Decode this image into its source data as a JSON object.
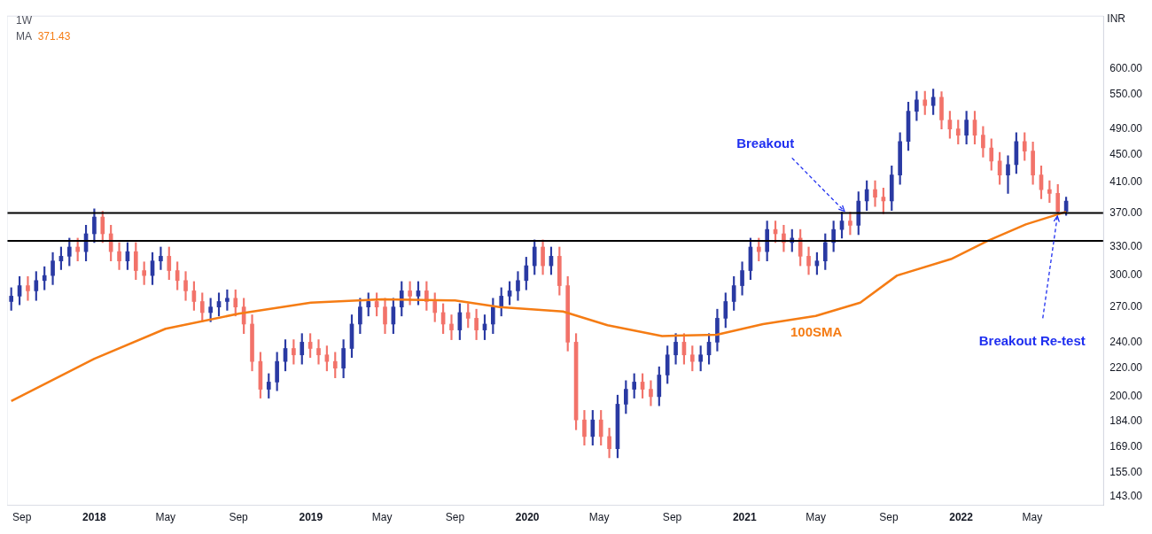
{
  "chart_data": {
    "type": "candlestick",
    "title": "1W",
    "ylabel": "INR",
    "log": "y",
    "legend": "top left",
    "marker": "none",
    "xlim": [
      "2017-08-07",
      "2022-08-29"
    ],
    "xticks": [
      {
        "value": "2017-09-01",
        "label": "Sep"
      },
      {
        "value": "2018-01-01",
        "label": "2018"
      },
      {
        "value": "2018-05-01",
        "label": "May"
      },
      {
        "value": "2018-09-01",
        "label": "Sep"
      },
      {
        "value": "2019-01-01",
        "label": "2019"
      },
      {
        "value": "2019-05-01",
        "label": "May"
      },
      {
        "value": "2019-09-01",
        "label": "Sep"
      },
      {
        "value": "2020-01-01",
        "label": "2020"
      },
      {
        "value": "2020-05-01",
        "label": "May"
      },
      {
        "value": "2020-09-01",
        "label": "Sep"
      },
      {
        "value": "2021-01-01",
        "label": "2021"
      },
      {
        "value": "2021-05-01",
        "label": "May"
      },
      {
        "value": "2021-09-01",
        "label": "Sep"
      },
      {
        "value": "2022-01-01",
        "label": "2022"
      },
      {
        "value": "2022-05-01",
        "label": "May"
      }
    ],
    "ylim": [
      139,
      715
    ],
    "yticks": [
      {
        "value": 143,
        "label": "143.00"
      },
      {
        "value": 155,
        "label": "155.00"
      },
      {
        "value": 169,
        "label": "169.00"
      },
      {
        "value": 184,
        "label": "184.00"
      },
      {
        "value": 200,
        "label": "200.00"
      },
      {
        "value": 220,
        "label": "220.00"
      },
      {
        "value": 240,
        "label": "240.00"
      },
      {
        "value": 270,
        "label": "270.00"
      },
      {
        "value": 300,
        "label": "300.00"
      },
      {
        "value": 330,
        "label": "330.00"
      },
      {
        "value": 370,
        "label": "370.00"
      },
      {
        "value": 410,
        "label": "410.00"
      },
      {
        "value": 450,
        "label": "450.00"
      },
      {
        "value": 490,
        "label": "490.00"
      },
      {
        "value": 550,
        "label": "550.00"
      },
      {
        "value": 600,
        "label": "600.00"
      }
    ],
    "colors": [
      "#2a3aa3",
      "#2a3aa3",
      "#f2736a",
      "#2a3aa3",
      "#2a3aa3",
      "#2a3aa3",
      "#2a3aa3",
      "#2a3aa3",
      "#f2736a",
      "#2a3aa3",
      "#2a3aa3",
      "#f2736a",
      "#f2736a",
      "#f2736a",
      "#2a3aa3",
      "#f2736a",
      "#f2736a",
      "#2a3aa3",
      "#2a3aa3",
      "#f2736a",
      "#f2736a",
      "#f2736a",
      "#f2736a",
      "#f2736a",
      "#2a3aa3",
      "#2a3aa3",
      "#2a3aa3",
      "#f2736a",
      "#f2736a",
      "#f2736a",
      "#f2736a",
      "#2a3aa3",
      "#2a3aa3",
      "#2a3aa3",
      "#f2736a",
      "#2a3aa3",
      "#f2736a",
      "#f2736a",
      "#f2736a",
      "#f2736a",
      "#2a3aa3",
      "#2a3aa3",
      "#2a3aa3",
      "#2a3aa3",
      "#f2736a",
      "#f2736a",
      "#2a3aa3",
      "#2a3aa3",
      "#f2736a",
      "#2a3aa3",
      "#f2736a",
      "#f2736a",
      "#f2736a",
      "#f2736a",
      "#2a3aa3",
      "#f2736a",
      "#f2736a",
      "#2a3aa3",
      "#2a3aa3",
      "#2a3aa3",
      "#2a3aa3",
      "#2a3aa3",
      "#2a3aa3",
      "#2a3aa3",
      "#f2736a",
      "#2a3aa3",
      "#f2736a",
      "#f2736a",
      "#f2736a",
      "#f2736a",
      "#2a3aa3",
      "#f2736a",
      "#f2736a",
      "#2a3aa3",
      "#2a3aa3",
      "#2a3aa3",
      "#f2736a",
      "#f2736a",
      "#2a3aa3",
      "#2a3aa3",
      "#2a3aa3",
      "#f2736a",
      "#f2736a",
      "#2a3aa3",
      "#2a3aa3",
      "#2a3aa3",
      "#2a3aa3",
      "#2a3aa3",
      "#2a3aa3",
      "#2a3aa3",
      "#f2736a",
      "#2a3aa3",
      "#f2736a",
      "#f2736a",
      "#2a3aa3",
      "#f2736a",
      "#f2736a",
      "#2a3aa3",
      "#2a3aa3",
      "#2a3aa3",
      "#2a3aa3",
      "#f2736a",
      "#2a3aa3",
      "#2a3aa3",
      "#f2736a",
      "#f2736a",
      "#2a3aa3",
      "#2a3aa3",
      "#2a3aa3",
      "#2a3aa3",
      "#f2736a",
      "#2a3aa3",
      "#f2736a",
      "#f2736a",
      "#f2736a",
      "#2a3aa3",
      "#f2736a",
      "#f2736a",
      "#f2736a",
      "#f2736a",
      "#2a3aa3",
      "#2a3aa3",
      "#f2736a",
      "#f2736a",
      "#f2736a",
      "#f2736a",
      "#f2736a",
      "#2a3aa3"
    ],
    "x": [
      "2017-08-14",
      "2017-08-28",
      "2017-09-11",
      "2017-09-25",
      "2017-10-09",
      "2017-10-23",
      "2017-11-06",
      "2017-11-20",
      "2017-12-04",
      "2017-12-18",
      "2018-01-01",
      "2018-01-15",
      "2018-01-29",
      "2018-02-12",
      "2018-02-26",
      "2018-03-12",
      "2018-03-26",
      "2018-04-09",
      "2018-04-23",
      "2018-05-07",
      "2018-05-21",
      "2018-06-04",
      "2018-06-18",
      "2018-07-02",
      "2018-07-16",
      "2018-07-30",
      "2018-08-13",
      "2018-08-27",
      "2018-09-10",
      "2018-09-24",
      "2018-10-08",
      "2018-10-22",
      "2018-11-05",
      "2018-11-19",
      "2018-12-03",
      "2018-12-17",
      "2018-12-31",
      "2019-01-14",
      "2019-01-28",
      "2019-02-11",
      "2019-02-25",
      "2019-03-11",
      "2019-03-25",
      "2019-04-08",
      "2019-04-22",
      "2019-05-06",
      "2019-05-20",
      "2019-06-03",
      "2019-06-17",
      "2019-07-01",
      "2019-07-15",
      "2019-07-29",
      "2019-08-12",
      "2019-08-26",
      "2019-09-09",
      "2019-09-23",
      "2019-10-07",
      "2019-10-21",
      "2019-11-04",
      "2019-11-18",
      "2019-12-02",
      "2019-12-16",
      "2019-12-30",
      "2020-01-13",
      "2020-01-27",
      "2020-02-10",
      "2020-02-24",
      "2020-03-09",
      "2020-03-23",
      "2020-04-06",
      "2020-04-20",
      "2020-05-04",
      "2020-05-18",
      "2020-06-01",
      "2020-06-15",
      "2020-06-29",
      "2020-07-13",
      "2020-07-27",
      "2020-08-10",
      "2020-08-24",
      "2020-09-07",
      "2020-09-21",
      "2020-10-05",
      "2020-10-19",
      "2020-11-02",
      "2020-11-16",
      "2020-11-30",
      "2020-12-14",
      "2020-12-28",
      "2021-01-11",
      "2021-01-25",
      "2021-02-08",
      "2021-02-22",
      "2021-03-08",
      "2021-03-22",
      "2021-04-05",
      "2021-04-19",
      "2021-05-03",
      "2021-05-17",
      "2021-05-31",
      "2021-06-14",
      "2021-06-28",
      "2021-07-12",
      "2021-07-26",
      "2021-08-09",
      "2021-08-23",
      "2021-09-06",
      "2021-09-20",
      "2021-10-04",
      "2021-10-18",
      "2021-11-01",
      "2021-11-15",
      "2021-11-29",
      "2021-12-13",
      "2021-12-27",
      "2022-01-10",
      "2022-01-24",
      "2022-02-07",
      "2022-02-21",
      "2022-03-07",
      "2022-03-21",
      "2022-04-04",
      "2022-04-18",
      "2022-05-02",
      "2022-05-16",
      "2022-05-30",
      "2022-06-13",
      "2022-06-27"
    ],
    "ohlc": [
      [
        275,
        288,
        267,
        280
      ],
      [
        280,
        299,
        272,
        290
      ],
      [
        290,
        299,
        276,
        285
      ],
      [
        285,
        304,
        276,
        295
      ],
      [
        295,
        309,
        286,
        300
      ],
      [
        300,
        324,
        291,
        315
      ],
      [
        315,
        330,
        306,
        320
      ],
      [
        320,
        340,
        310,
        330
      ],
      [
        330,
        340,
        315,
        325
      ],
      [
        325,
        355,
        315,
        345
      ],
      [
        345,
        375,
        335,
        365
      ],
      [
        365,
        372,
        335,
        345
      ],
      [
        345,
        355,
        315,
        325
      ],
      [
        325,
        335,
        306,
        315
      ],
      [
        315,
        335,
        306,
        325
      ],
      [
        325,
        335,
        296,
        305
      ],
      [
        305,
        314,
        291,
        300
      ],
      [
        300,
        324,
        291,
        315
      ],
      [
        315,
        330,
        306,
        320
      ],
      [
        320,
        330,
        296,
        305
      ],
      [
        305,
        314,
        286,
        295
      ],
      [
        295,
        304,
        276,
        285
      ],
      [
        285,
        294,
        267,
        275
      ],
      [
        275,
        283,
        257,
        265
      ],
      [
        265,
        278,
        257,
        270
      ],
      [
        270,
        283,
        262,
        275
      ],
      [
        275,
        286,
        267,
        278
      ],
      [
        278,
        286,
        262,
        270
      ],
      [
        270,
        278,
        247,
        255
      ],
      [
        255,
        263,
        218,
        225
      ],
      [
        225,
        232,
        199,
        205
      ],
      [
        205,
        216,
        199,
        210
      ],
      [
        210,
        232,
        204,
        225
      ],
      [
        225,
        242,
        218,
        235
      ],
      [
        235,
        242,
        223,
        230
      ],
      [
        230,
        247,
        223,
        240
      ],
      [
        240,
        247,
        228,
        235
      ],
      [
        235,
        242,
        223,
        230
      ],
      [
        230,
        237,
        218,
        225
      ],
      [
        225,
        232,
        213,
        220
      ],
      [
        220,
        242,
        213,
        235
      ],
      [
        235,
        263,
        228,
        255
      ],
      [
        255,
        278,
        247,
        270
      ],
      [
        270,
        283,
        262,
        275
      ],
      [
        275,
        283,
        262,
        270
      ],
      [
        270,
        278,
        247,
        255
      ],
      [
        255,
        278,
        247,
        270
      ],
      [
        270,
        294,
        262,
        285
      ],
      [
        285,
        294,
        272,
        280
      ],
      [
        280,
        294,
        272,
        285
      ],
      [
        285,
        294,
        267,
        275
      ],
      [
        275,
        283,
        257,
        265
      ],
      [
        265,
        273,
        247,
        255
      ],
      [
        255,
        263,
        242,
        250
      ],
      [
        250,
        273,
        242,
        265
      ],
      [
        265,
        273,
        252,
        260
      ],
      [
        260,
        268,
        242,
        250
      ],
      [
        250,
        263,
        242,
        255
      ],
      [
        255,
        278,
        247,
        270
      ],
      [
        270,
        288,
        262,
        280
      ],
      [
        280,
        294,
        272,
        285
      ],
      [
        285,
        304,
        276,
        295
      ],
      [
        295,
        319,
        286,
        310
      ],
      [
        310,
        338,
        301,
        330
      ],
      [
        330,
        338,
        301,
        310
      ],
      [
        310,
        330,
        301,
        320
      ],
      [
        320,
        330,
        281,
        290
      ],
      [
        290,
        299,
        233,
        240
      ],
      [
        240,
        247,
        179,
        185
      ],
      [
        185,
        191,
        170,
        175
      ],
      [
        175,
        191,
        170,
        185
      ],
      [
        185,
        191,
        170,
        175
      ],
      [
        175,
        180,
        163,
        168
      ],
      [
        168,
        201,
        163,
        195
      ],
      [
        195,
        211,
        189,
        205
      ],
      [
        205,
        216,
        199,
        210
      ],
      [
        210,
        216,
        199,
        205
      ],
      [
        205,
        211,
        194,
        200
      ],
      [
        200,
        221,
        194,
        215
      ],
      [
        215,
        237,
        209,
        230
      ],
      [
        230,
        247,
        223,
        240
      ],
      [
        240,
        247,
        223,
        230
      ],
      [
        230,
        237,
        218,
        225
      ],
      [
        225,
        237,
        218,
        230
      ],
      [
        230,
        247,
        223,
        240
      ],
      [
        240,
        268,
        233,
        260
      ],
      [
        260,
        283,
        252,
        275
      ],
      [
        275,
        299,
        267,
        290
      ],
      [
        290,
        314,
        281,
        305
      ],
      [
        305,
        340,
        296,
        330
      ],
      [
        330,
        340,
        315,
        325
      ],
      [
        325,
        360,
        315,
        350
      ],
      [
        350,
        360,
        335,
        345
      ],
      [
        345,
        355,
        325,
        335
      ],
      [
        335,
        350,
        325,
        340
      ],
      [
        340,
        350,
        310,
        320
      ],
      [
        320,
        330,
        301,
        310
      ],
      [
        310,
        324,
        301,
        315
      ],
      [
        315,
        345,
        306,
        335
      ],
      [
        335,
        360,
        325,
        350
      ],
      [
        350,
        371,
        340,
        360
      ],
      [
        360,
        371,
        344,
        355
      ],
      [
        355,
        397,
        344,
        385
      ],
      [
        385,
        412,
        373,
        400
      ],
      [
        400,
        412,
        378,
        390
      ],
      [
        390,
        402,
        369,
        385
      ],
      [
        385,
        433,
        373,
        420
      ],
      [
        420,
        484,
        407,
        470
      ],
      [
        470,
        536,
        456,
        520
      ],
      [
        520,
        556,
        504,
        540
      ],
      [
        540,
        556,
        514,
        530
      ],
      [
        530,
        560,
        514,
        545
      ],
      [
        545,
        555,
        490,
        505
      ],
      [
        505,
        520,
        475,
        490
      ],
      [
        490,
        505,
        466,
        480
      ],
      [
        480,
        520,
        466,
        505
      ],
      [
        505,
        520,
        466,
        480
      ],
      [
        480,
        494,
        446,
        460
      ],
      [
        460,
        474,
        427,
        440
      ],
      [
        440,
        453,
        407,
        420
      ],
      [
        420,
        448,
        395,
        435
      ],
      [
        435,
        484,
        422,
        470
      ],
      [
        470,
        484,
        441,
        455
      ],
      [
        455,
        469,
        407,
        420
      ],
      [
        420,
        433,
        388,
        400
      ],
      [
        400,
        412,
        383,
        395
      ],
      [
        395,
        407,
        368,
        372
      ],
      [
        372,
        390,
        367,
        385
      ]
    ],
    "series": [
      {
        "name": "MA",
        "type": "line",
        "color": "#f57c14",
        "x": [
          "2017-08-14",
          "2018-01-01",
          "2018-05-01",
          "2018-09-01",
          "2019-01-01",
          "2019-05-01",
          "2019-09-01",
          "2019-11-15",
          "2020-03-01",
          "2020-05-15",
          "2020-08-15",
          "2020-11-15",
          "2021-02-01",
          "2021-05-01",
          "2021-07-15",
          "2021-09-15",
          "2021-12-15",
          "2022-02-15",
          "2022-04-20",
          "2022-06-27"
        ],
        "values": [
          197,
          227,
          251,
          264,
          274,
          277,
          276,
          270,
          266,
          254,
          245,
          246,
          255,
          262,
          274,
          300,
          317,
          337,
          356,
          371.43
        ]
      }
    ],
    "ref_lines": [
      {
        "axis": "y",
        "value": 370,
        "color": "#000000"
      },
      {
        "axis": "y",
        "value": 337,
        "color": "#000000"
      }
    ],
    "annotations": [
      "371.43",
      {
        "text": "Breakout",
        "x": "2021-06-21",
        "y": 370
      },
      {
        "text": "Breakout Re-test",
        "x": "2022-06-13",
        "y": 370
      },
      "100SMA"
    ]
  }
}
